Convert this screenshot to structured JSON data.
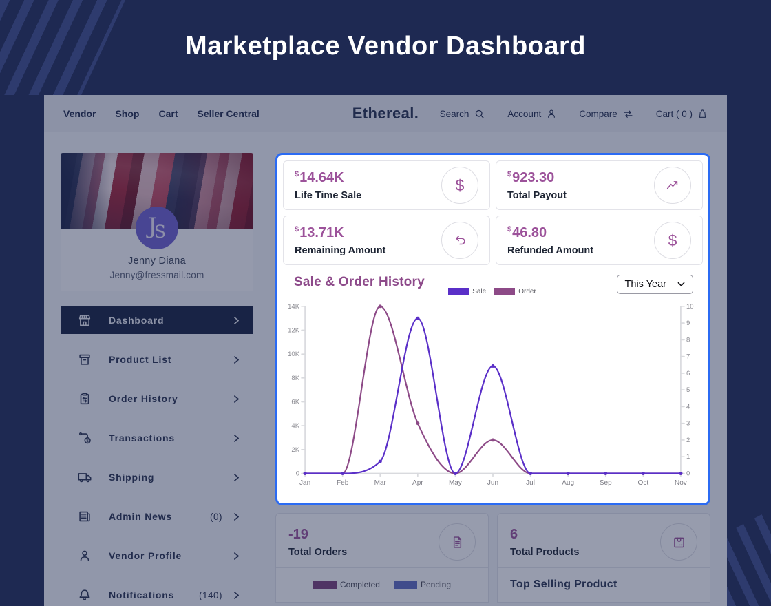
{
  "page_title": "Marketplace Vendor Dashboard",
  "navbar": {
    "links": [
      {
        "label": "Vendor"
      },
      {
        "label": "Shop"
      },
      {
        "label": "Cart"
      },
      {
        "label": "Seller Central"
      }
    ],
    "logo": "Ethereal.",
    "search_label": "Search",
    "account_label": "Account",
    "compare_label": "Compare",
    "cart_label": "Cart ( 0 )"
  },
  "sidebar": {
    "profile": {
      "initial_1": "J",
      "initial_2": "S",
      "name": "Jenny Diana",
      "email": "Jenny@fressmail.com"
    },
    "menu": [
      {
        "label": "Dashboard",
        "active": true
      },
      {
        "label": "Product List"
      },
      {
        "label": "Order History"
      },
      {
        "label": "Transactions"
      },
      {
        "label": "Shipping"
      },
      {
        "label": "Admin News",
        "count": "(0)"
      },
      {
        "label": "Vendor Profile"
      },
      {
        "label": "Notifications",
        "count": "(140)"
      }
    ]
  },
  "stats": [
    {
      "currency": "$",
      "value": "14.64K",
      "label": "Life Time Sale",
      "icon": "dollar-icon"
    },
    {
      "currency": "$",
      "value": "923.30",
      "label": "Total Payout",
      "icon": "trend-up-icon"
    },
    {
      "currency": "$",
      "value": "13.71K",
      "label": "Remaining Amount",
      "icon": "undo-icon"
    },
    {
      "currency": "$",
      "value": "46.80",
      "label": "Refunded Amount",
      "icon": "dollar-icon"
    }
  ],
  "chart": {
    "title": "Sale & Order History",
    "range_selected": "This Year"
  },
  "chart_data": {
    "type": "line",
    "x": [
      "Jan",
      "Feb",
      "Mar",
      "Apr",
      "May",
      "Jun",
      "Jul",
      "Aug",
      "Sep",
      "Oct",
      "Nov"
    ],
    "series": [
      {
        "name": "Sale",
        "color": "#5a2fc8",
        "axis": "left",
        "values": [
          0,
          0,
          1000,
          13000,
          0,
          9000,
          0,
          0,
          0,
          0,
          0
        ]
      },
      {
        "name": "Order",
        "color": "#8d4a87",
        "axis": "right",
        "values": [
          0,
          0,
          10,
          3,
          0,
          2,
          0,
          0,
          0,
          0,
          0
        ]
      }
    ],
    "left_axis": {
      "min": 0,
      "max": 14000,
      "tick_labels": [
        "0",
        "2K",
        "4K",
        "6K",
        "8K",
        "10K",
        "12K",
        "14K"
      ]
    },
    "right_axis": {
      "min": 0,
      "max": 10,
      "tick_labels": [
        "0",
        "1",
        "2",
        "3",
        "4",
        "5",
        "6",
        "7",
        "8",
        "9",
        "10"
      ]
    },
    "legend_position": "top",
    "grid": false
  },
  "bottom_cards": [
    {
      "value": "-19",
      "label": "Total Orders",
      "icon": "document-icon",
      "legend": [
        {
          "label": "Completed",
          "color": "#7b3f78"
        },
        {
          "label": "Pending",
          "color": "#5f6cc0"
        }
      ]
    },
    {
      "value": "6",
      "label": "Total Products",
      "icon": "package-icon",
      "footer": "Top Selling Product"
    }
  ],
  "colors": {
    "highlight_border": "#2b6bf3",
    "accent_value": "#9c529a",
    "chart_title": "#8d4a8a"
  }
}
